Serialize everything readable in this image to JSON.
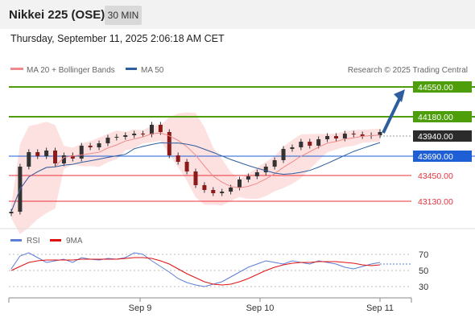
{
  "header": {
    "instrument": "Nikkei 225 (OSE)",
    "timeframe": "30 MIN",
    "datetime": "Thursday, September 11, 2025 2:06:18 AM CET"
  },
  "legend": {
    "ma20_label": "MA 20 + Bollinger Bands",
    "ma50_label": "MA 50",
    "credit": "Research © 2025 Trading Central",
    "rsi_label": "RSI",
    "ma9_label": "9MA"
  },
  "colors": {
    "resistance": "#4d9e0a",
    "pivot": "#2b2b2b",
    "support": "#e8323c",
    "current": "#1f5fd6",
    "ma20": "#f08a8a",
    "ma50": "#2e5e9e",
    "band_fill": "#fde1e1",
    "arrow": "#2e5e9e",
    "rsi": "#5b7fd6",
    "rsi_ma": "#e01010"
  },
  "chart_data": [
    {
      "type": "candlestick",
      "title": "Nikkei 225 (OSE)",
      "ylim": [
        42850,
        44650
      ],
      "x_ticks": [
        "Sep 9",
        "Sep 10",
        "Sep 11"
      ],
      "levels": [
        {
          "value": 44550.0,
          "label": "44550.00",
          "role": "resistance"
        },
        {
          "value": 44180.0,
          "label": "44180.00",
          "role": "resistance"
        },
        {
          "value": 43940.0,
          "label": "43940.00",
          "role": "pivot"
        },
        {
          "value": 43690.0,
          "label": "43690.00",
          "role": "current"
        },
        {
          "value": 43450.0,
          "label": "43450.00",
          "role": "support"
        },
        {
          "value": 43130.0,
          "label": "43130.00",
          "role": "support"
        }
      ],
      "close_approx": [
        43000,
        43560,
        43740,
        43690,
        43760,
        43600,
        43700,
        43660,
        43820,
        43800,
        43850,
        43920,
        43930,
        43950,
        43970,
        43960,
        44080,
        43990,
        43700,
        43620,
        43500,
        43330,
        43270,
        43230,
        43250,
        43300,
        43400,
        43440,
        43490,
        43560,
        43640,
        43780,
        43800,
        43870,
        43820,
        43900,
        43940,
        43910,
        43970,
        43960,
        43940,
        43950,
        43990
      ]
    },
    {
      "type": "line",
      "title": "RSI",
      "ylim": [
        20,
        80
      ],
      "y_ticks": [
        30,
        50,
        70
      ],
      "series": [
        {
          "name": "RSI",
          "values": [
            52,
            68,
            72,
            66,
            60,
            62,
            64,
            60,
            66,
            64,
            63,
            65,
            64,
            66,
            72,
            70,
            62,
            55,
            48,
            40,
            35,
            32,
            30,
            33,
            36,
            42,
            48,
            54,
            58,
            62,
            60,
            58,
            62,
            60,
            58,
            62,
            60,
            58,
            54,
            52,
            55,
            58,
            60
          ]
        },
        {
          "name": "9MA",
          "values": [
            50,
            55,
            60,
            62,
            63,
            63,
            63,
            63,
            64,
            64,
            64,
            64,
            64,
            65,
            66,
            66,
            65,
            62,
            58,
            52,
            46,
            41,
            36,
            33,
            32,
            33,
            36,
            40,
            45,
            50,
            54,
            57,
            59,
            60,
            60,
            61,
            61,
            61,
            60,
            59,
            57,
            56,
            57
          ]
        }
      ]
    }
  ]
}
